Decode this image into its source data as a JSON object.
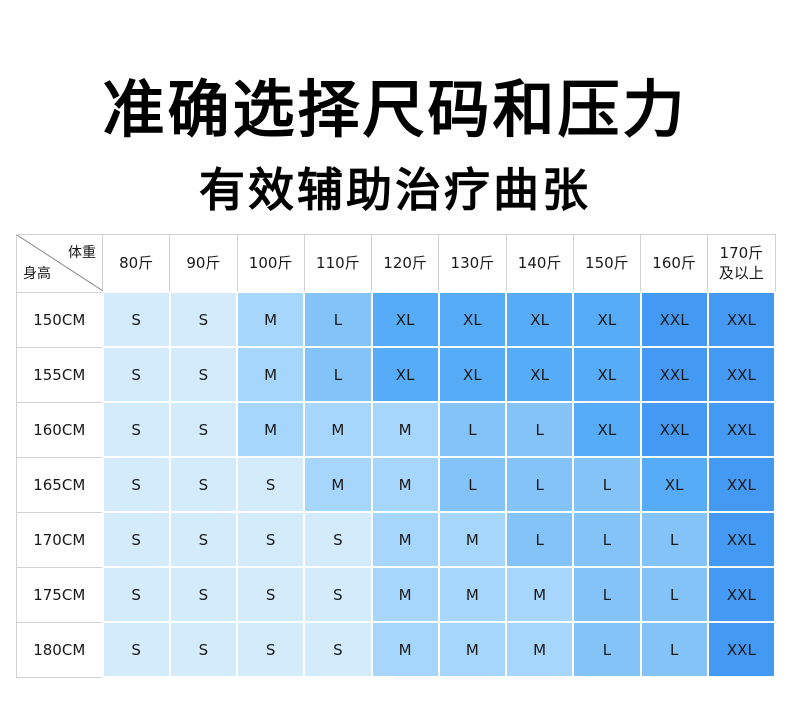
{
  "title": "准确选择尺码和压力",
  "subtitle": "有效辅助治疗曲张",
  "corner": {
    "weight": "体重",
    "height": "身高"
  },
  "weights": [
    "80斤",
    "90斤",
    "100斤",
    "110斤",
    "120斤",
    "130斤",
    "140斤",
    "150斤",
    "160斤",
    "170斤",
    "及以上"
  ],
  "colors": {
    "S": "#d3ebfb",
    "M": "#a6d6fb",
    "L": "#84c3f8",
    "XL": "#57acf7",
    "XXL": "#4499f2",
    "border": "#d2d2d2"
  },
  "rows": [
    {
      "height": "150CM",
      "sizes": [
        "S",
        "S",
        "M",
        "L",
        "XL",
        "XL",
        "XL",
        "XL",
        "XXL",
        "XXL"
      ]
    },
    {
      "height": "155CM",
      "sizes": [
        "S",
        "S",
        "M",
        "L",
        "XL",
        "XL",
        "XL",
        "XL",
        "XXL",
        "XXL"
      ]
    },
    {
      "height": "160CM",
      "sizes": [
        "S",
        "S",
        "M",
        "M",
        "M",
        "L",
        "L",
        "XL",
        "XXL",
        "XXL"
      ]
    },
    {
      "height": "165CM",
      "sizes": [
        "S",
        "S",
        "S",
        "M",
        "M",
        "L",
        "L",
        "L",
        "XL",
        "XXL"
      ]
    },
    {
      "height": "170CM",
      "sizes": [
        "S",
        "S",
        "S",
        "S",
        "M",
        "M",
        "L",
        "L",
        "L",
        "XXL"
      ]
    },
    {
      "height": "175CM",
      "sizes": [
        "S",
        "S",
        "S",
        "S",
        "M",
        "M",
        "M",
        "L",
        "L",
        "XXL"
      ]
    },
    {
      "height": "180CM",
      "sizes": [
        "S",
        "S",
        "S",
        "S",
        "M",
        "M",
        "M",
        "L",
        "L",
        "XXL"
      ]
    }
  ]
}
